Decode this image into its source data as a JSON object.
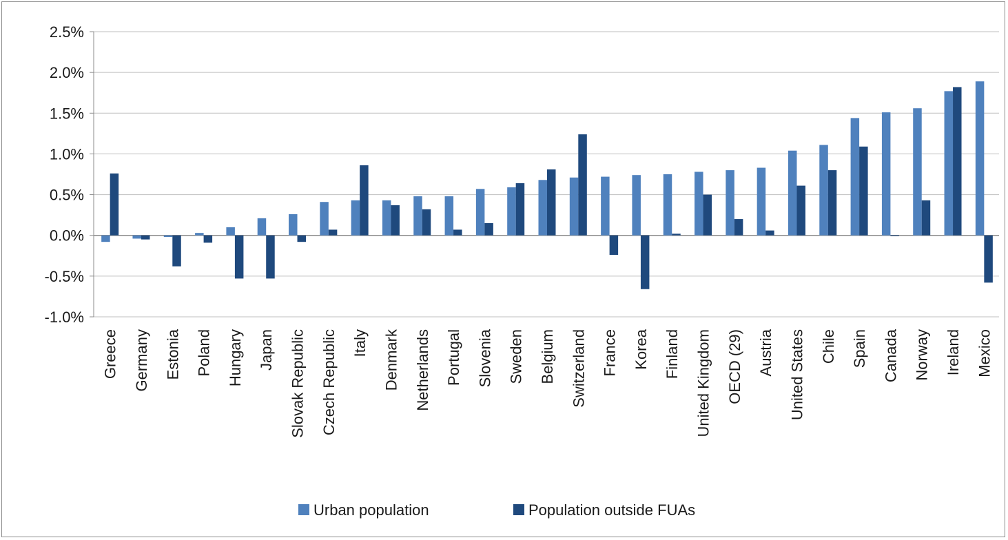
{
  "chart_data": {
    "type": "bar",
    "categories": [
      "Greece",
      "Germany",
      "Estonia",
      "Poland",
      "Hungary",
      "Japan",
      "Slovak Republic",
      "Czech Republic",
      "Italy",
      "Denmark",
      "Netherlands",
      "Portugal",
      "Slovenia",
      "Sweden",
      "Belgium",
      "Switzerland",
      "France",
      "Korea",
      "Finland",
      "United Kingdom",
      "OECD (29)",
      "Austria",
      "United States",
      "Chile",
      "Spain",
      "Canada",
      "Norway",
      "Ireland",
      "Mexico"
    ],
    "series": [
      {
        "name": "Urban population",
        "color": "#4f81bd",
        "values": [
          -0.08,
          -0.04,
          -0.02,
          0.03,
          0.1,
          0.21,
          0.26,
          0.41,
          0.43,
          0.43,
          0.48,
          0.48,
          0.57,
          0.59,
          0.68,
          0.71,
          0.72,
          0.74,
          0.75,
          0.78,
          0.8,
          0.83,
          1.04,
          1.11,
          1.44,
          1.51,
          1.56,
          1.77,
          1.89
        ]
      },
      {
        "name": "Population outside FUAs",
        "color": "#1f497d",
        "values": [
          0.76,
          -0.05,
          -0.38,
          -0.09,
          -0.53,
          -0.53,
          -0.08,
          0.07,
          0.86,
          0.37,
          0.32,
          0.07,
          0.15,
          0.64,
          0.81,
          1.24,
          -0.24,
          -0.66,
          0.02,
          0.5,
          0.2,
          0.06,
          0.61,
          0.8,
          1.09,
          -0.01,
          0.43,
          1.82,
          -0.58
        ]
      }
    ],
    "ylim": [
      -1.0,
      2.5
    ],
    "yticks": [
      2.5,
      2.0,
      1.5,
      1.0,
      0.5,
      0.0,
      -0.5,
      -1.0
    ],
    "ytick_labels": [
      "2.5%",
      "2.0%",
      "1.5%",
      "1.0%",
      "0.5%",
      "0.0%",
      "-0.5%",
      "-1.0%"
    ],
    "grid": true,
    "legend_position": "bottom"
  }
}
